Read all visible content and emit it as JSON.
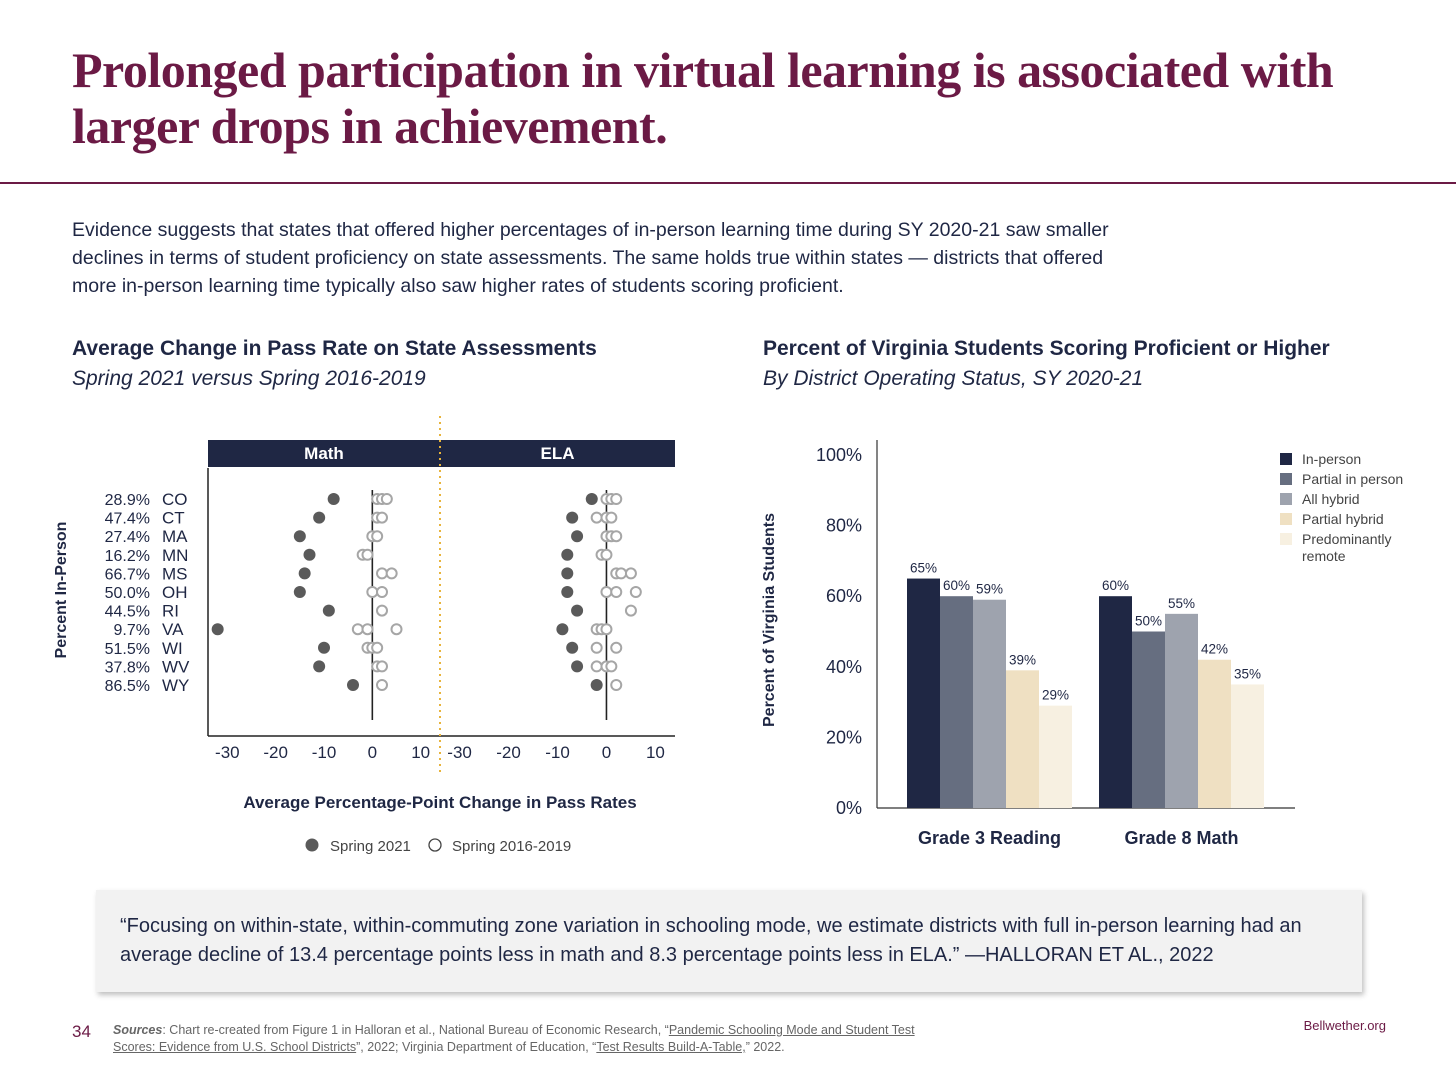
{
  "title": "Prolonged participation in virtual learning is associated with larger drops in achievement.",
  "intro": "Evidence suggests that states that offered higher percentages of in-person learning time during SY 2020-21 saw smaller declines in terms of student proficiency on state assessments. The same holds true within states — districts that offered more in-person learning time typically also saw higher rates of students scoring proficient.",
  "colors": {
    "brand": "#6b1a45",
    "navy": "#1f2744",
    "spring2021_dot": "#5a5a5a",
    "hist_dot": "#a6a6a6",
    "divider": "#e8b43c"
  },
  "chart_data": [
    {
      "type": "scatter",
      "title": "Average Change in Pass Rate on State Assessments",
      "subtitle": "Spring 2021 versus Spring 2016-2019",
      "ylabel": "Percent In-Person",
      "xlabel": "Average Percentage-Point Change in Pass Rates",
      "panels": [
        "Math",
        "ELA"
      ],
      "xlim": [
        -34,
        14
      ],
      "xticks": [
        -30,
        -20,
        -10,
        0,
        10
      ],
      "legend": [
        "Spring 2021",
        "Spring 2016-2019"
      ],
      "legend_position": "bottom",
      "rows": [
        {
          "state": "CO",
          "pct_in_person": "28.9%",
          "math_2021": -8,
          "math_hist": [
            1,
            2,
            3
          ],
          "ela_2021": -3,
          "ela_hist": [
            0,
            1,
            2
          ]
        },
        {
          "state": "CT",
          "pct_in_person": "47.4%",
          "math_2021": -11,
          "math_hist": [
            1,
            2
          ],
          "ela_2021": -7,
          "ela_hist": [
            -2,
            0,
            1
          ]
        },
        {
          "state": "MA",
          "pct_in_person": "27.4%",
          "math_2021": -15,
          "math_hist": [
            0,
            1
          ],
          "ela_2021": -6,
          "ela_hist": [
            0,
            1,
            2
          ]
        },
        {
          "state": "MN",
          "pct_in_person": "16.2%",
          "math_2021": -13,
          "math_hist": [
            -2,
            -1
          ],
          "ela_2021": -8,
          "ela_hist": [
            -1,
            0
          ]
        },
        {
          "state": "MS",
          "pct_in_person": "66.7%",
          "math_2021": -14,
          "math_hist": [
            2,
            4
          ],
          "ela_2021": -8,
          "ela_hist": [
            2,
            3,
            5
          ]
        },
        {
          "state": "OH",
          "pct_in_person": "50.0%",
          "math_2021": -15,
          "math_hist": [
            0,
            2
          ],
          "ela_2021": -8,
          "ela_hist": [
            0,
            2,
            6
          ]
        },
        {
          "state": "RI",
          "pct_in_person": "44.5%",
          "math_2021": -9,
          "math_hist": [
            2
          ],
          "ela_2021": -6,
          "ela_hist": [
            5
          ]
        },
        {
          "state": "VA",
          "pct_in_person": "9.7%",
          "math_2021": -32,
          "math_hist": [
            -3,
            -1,
            5
          ],
          "ela_2021": -9,
          "ela_hist": [
            -2,
            -1,
            0
          ]
        },
        {
          "state": "WI",
          "pct_in_person": "51.5%",
          "math_2021": -10,
          "math_hist": [
            -1,
            0,
            1
          ],
          "ela_2021": -7,
          "ela_hist": [
            -2,
            2
          ]
        },
        {
          "state": "WV",
          "pct_in_person": "37.8%",
          "math_2021": -11,
          "math_hist": [
            1,
            2
          ],
          "ela_2021": -6,
          "ela_hist": [
            -2,
            0,
            1
          ]
        },
        {
          "state": "WY",
          "pct_in_person": "86.5%",
          "math_2021": -4,
          "math_hist": [
            2
          ],
          "ela_2021": -2,
          "ela_hist": [
            2
          ]
        }
      ]
    },
    {
      "type": "bar",
      "title": "Percent of Virginia Students Scoring Proficient or Higher",
      "subtitle": "By District Operating Status, SY 2020-21",
      "ylabel": "Percent of Virginia Students",
      "ylim": [
        0,
        100
      ],
      "yticks": [
        "0%",
        "20%",
        "40%",
        "60%",
        "80%",
        "100%"
      ],
      "categories": [
        "Grade 3 Reading",
        "Grade 8 Math"
      ],
      "series": [
        {
          "name": "In-person",
          "color": "#1f2744",
          "values": [
            65,
            60
          ],
          "labels": [
            "65%",
            "60%"
          ]
        },
        {
          "name": "Partial in person",
          "color": "#666e80",
          "values": [
            60,
            50
          ],
          "labels": [
            "60%",
            "50%"
          ]
        },
        {
          "name": "All hybrid",
          "color": "#9ea3ae",
          "values": [
            59,
            55
          ],
          "labels": [
            "59%",
            "55%"
          ]
        },
        {
          "name": "Partial hybrid",
          "color": "#efe0c2",
          "values": [
            39,
            42
          ],
          "labels": [
            "39%",
            "42%"
          ]
        },
        {
          "name": "Predominantly remote",
          "color": "#f7f0e1",
          "values": [
            29,
            35
          ],
          "labels": [
            "29%",
            "35%"
          ]
        }
      ],
      "legend_position": "top-right"
    }
  ],
  "quote": "“Focusing on within-state, within-commuting zone variation in schooling mode, we estimate districts with full in-person learning had an average decline of 13.4 percentage points less in math and 8.3 percentage points less in ELA.” —HALLORAN ET AL., 2022",
  "footer": {
    "page_number": "34",
    "sources_label": "Sources",
    "sources_part1": ": Chart re-created from Figure 1 in Halloran et al., National Bureau of Economic Research, “",
    "sources_link1": "Pandemic Schooling Mode and Student Test Scores: Evidence from U.S. School Districts",
    "sources_part2": "”, 2022; Virginia Department of Education, “",
    "sources_link2": "Test Results Build-A-Table,",
    "sources_part3": "” 2022.",
    "site": "Bellwether.org"
  }
}
